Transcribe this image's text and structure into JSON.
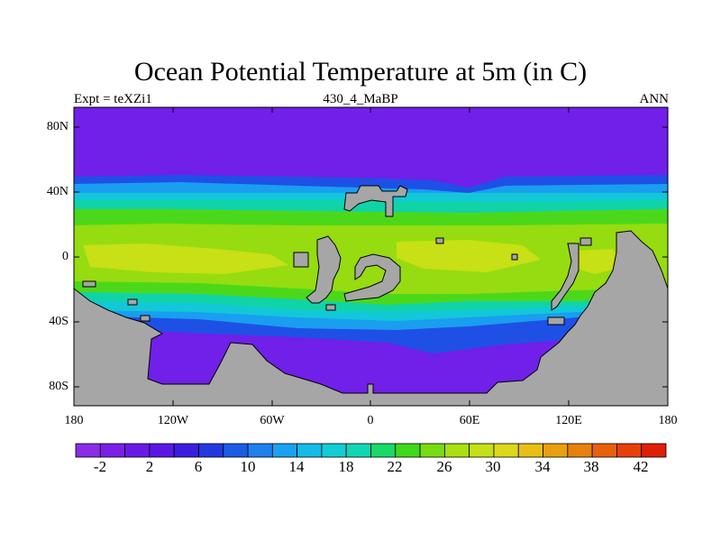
{
  "title": "Ocean Potential Temperature at 5m (in C)",
  "left_subtitle": "Expt = teXZi1",
  "center_subtitle": "430_4_MaBP",
  "right_subtitle": "ANN",
  "y_ticks": [
    "80N",
    "40N",
    "0",
    "40S",
    "80S"
  ],
  "x_ticks": [
    "180",
    "120W",
    "60W",
    "0",
    "60E",
    "120E",
    "180"
  ],
  "colorbar": {
    "labels": [
      "-2",
      "2",
      "6",
      "10",
      "14",
      "18",
      "22",
      "26",
      "30",
      "34",
      "38",
      "42"
    ],
    "colors": [
      "#8c2be6",
      "#7a20e6",
      "#6a1ae6",
      "#5a18e6",
      "#3c1ee0",
      "#2238e0",
      "#1b5ce6",
      "#1e80f0",
      "#1aa2f0",
      "#14bce6",
      "#12ccd6",
      "#10d6b4",
      "#18d868",
      "#40d81a",
      "#78dc10",
      "#a8e010",
      "#c4e016",
      "#dcd81a",
      "#e8c014",
      "#e8a010",
      "#e8800e",
      "#e8600c",
      "#e8400a",
      "#e01e08"
    ]
  },
  "map_colors": {
    "land": "#a6a6a6",
    "polar": "#7020e8",
    "deep_blue": "#1e50e6",
    "mid_blue": "#1a9ef0",
    "cyan": "#12c8d8",
    "teal": "#10d4a8",
    "green": "#4cd81a",
    "light_green": "#96dc10",
    "yellow_green": "#c8e016"
  }
}
